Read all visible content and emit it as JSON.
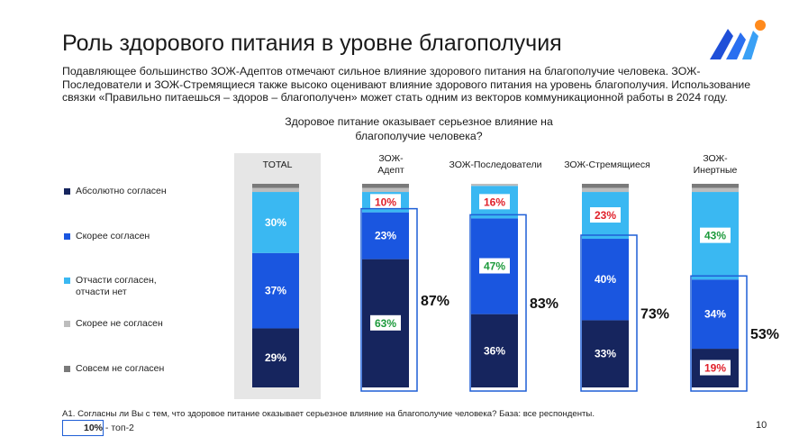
{
  "header": {
    "title": "Роль здорового питания в уровне благополучия",
    "intro": "Подавляющее большинство ЗОЖ-Адептов отмечают сильное влияние здорового питания на благополучие человека. ЗОЖ-Последователи и ЗОЖ-Стремящиеся также высоко оценивают влияние здорового питания на уровень благополучия. Использование связки «Правильно питаешься – здоров – благополучен» может стать одним из векторов коммуникационной работы в 2024 году."
  },
  "legend": {
    "items": [
      {
        "label": "Абсолютно согласен",
        "color": "#16255e"
      },
      {
        "label": "Скорее согласен",
        "color": "#1a56e0"
      },
      {
        "label": "Отчасти согласен, отчасти нет",
        "color": "#3ab8f2"
      },
      {
        "label": "Скорее не согласен",
        "color": "#bdbdbd"
      },
      {
        "label": "Совсем не согласен",
        "color": "#7a7a7a"
      }
    ]
  },
  "chart_data": {
    "type": "bar",
    "stacked": true,
    "title": "Здоровое питание оказывает серьезное влияние на благополучие человека?",
    "categories": [
      "TOTAL",
      "ЗОЖ-Адепт",
      "ЗОЖ-Последователи",
      "ЗОЖ-Стремящиеся",
      "ЗОЖ-Инертные"
    ],
    "category_labels": [
      "TOTAL",
      "ЗОЖ-\nАдепт",
      "ЗОЖ-Последователи",
      "ЗОЖ-Стремящиеся",
      "ЗОЖ-\nИнертные"
    ],
    "series": [
      {
        "name": "Абсолютно согласен",
        "values": [
          29,
          63,
          36,
          33,
          19
        ]
      },
      {
        "name": "Скорее согласен",
        "values": [
          37,
          23,
          47,
          40,
          34
        ]
      },
      {
        "name": "Отчасти согласен, отчасти нет",
        "values": [
          30,
          10,
          16,
          23,
          43
        ]
      },
      {
        "name": "Скорее не согласен",
        "values": [
          2,
          2,
          1,
          2,
          2
        ]
      },
      {
        "name": "Совсем не согласен",
        "values": [
          2,
          2,
          0,
          2,
          2
        ]
      }
    ],
    "data_labels": [
      [
        "29%",
        "37%",
        "30%",
        "",
        ""
      ],
      [
        "63%",
        "23%",
        "10%",
        "",
        ""
      ],
      [
        "36%",
        "47%",
        "16%",
        "",
        ""
      ],
      [
        "33%",
        "40%",
        "23%",
        "",
        ""
      ],
      [
        "19%",
        "34%",
        "43%",
        "",
        ""
      ]
    ],
    "label_styles": [
      [
        "plain",
        "plain",
        "plain",
        "",
        ""
      ],
      [
        "green",
        "plain",
        "red",
        "",
        ""
      ],
      [
        "plain",
        "green",
        "red",
        "",
        ""
      ],
      [
        "plain",
        "plain",
        "red",
        "",
        ""
      ],
      [
        "red",
        "plain",
        "green",
        "",
        ""
      ]
    ],
    "top2": [
      "",
      "87%",
      "83%",
      "73%",
      "53%"
    ],
    "ylim": [
      0,
      100
    ]
  },
  "footer": {
    "footnote": "А1. Согласны ли Вы с тем, что здоровое питание оказывает серьезное влияние на благополучие человека? База: все респонденты.",
    "legend_value": "10%",
    "legend_label": " - топ-2",
    "page_number": "10"
  }
}
